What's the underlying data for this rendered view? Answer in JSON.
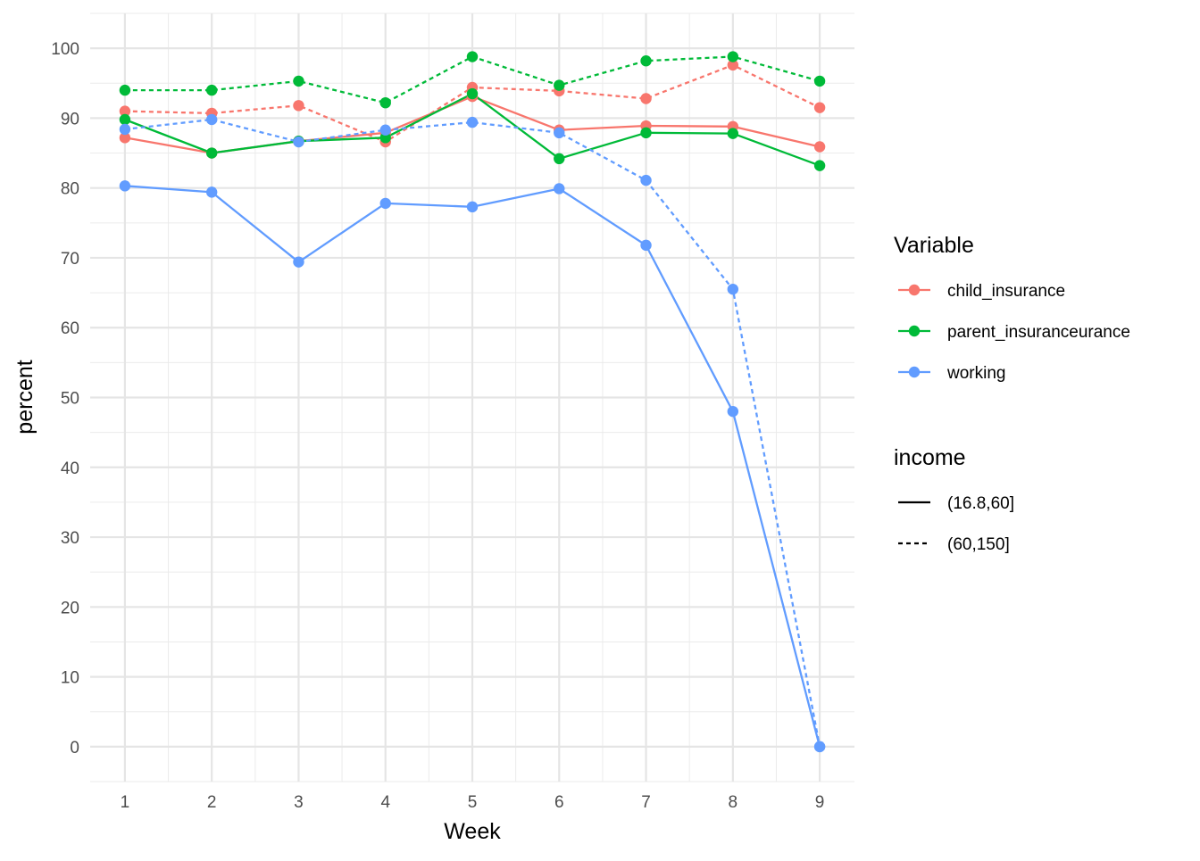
{
  "chart_data": {
    "type": "line",
    "title": "",
    "xlabel": "Week",
    "ylabel": "percent",
    "x": [
      1,
      2,
      3,
      4,
      5,
      6,
      7,
      8,
      9
    ],
    "xlim": [
      0.6,
      9.4
    ],
    "ylim": [
      -5,
      105
    ],
    "yticks": [
      0,
      10,
      20,
      30,
      40,
      50,
      60,
      70,
      80,
      90,
      100
    ],
    "grid": true,
    "legend_position": "right",
    "legend": {
      "color_title": "Variable",
      "color_entries": [
        {
          "label": "child_insurance",
          "color": "#F8766D"
        },
        {
          "label": "parent_insuranceurance",
          "color": "#00BA38"
        },
        {
          "label": "working",
          "color": "#619CFF"
        }
      ],
      "linetype_title": "income",
      "linetype_entries": [
        {
          "label": "(16.8,60]",
          "linetype": "solid"
        },
        {
          "label": "(60,150]",
          "linetype": "dashed"
        }
      ]
    },
    "series": [
      {
        "variable": "child_insurance",
        "income": "(16.8,60]",
        "color": "#F8766D",
        "linetype": "solid",
        "values": [
          87.2,
          85.0,
          86.7,
          87.9,
          93.1,
          88.3,
          88.9,
          88.8,
          85.9
        ]
      },
      {
        "variable": "child_insurance",
        "income": "(60,150]",
        "color": "#F8766D",
        "linetype": "dashed",
        "values": [
          91.0,
          90.7,
          91.8,
          86.6,
          94.4,
          93.9,
          92.8,
          97.6,
          91.5
        ]
      },
      {
        "variable": "parent_insuranceurance",
        "income": "(16.8,60]",
        "color": "#00BA38",
        "linetype": "solid",
        "values": [
          89.8,
          85.0,
          86.7,
          87.2,
          93.5,
          84.2,
          87.9,
          87.8,
          83.2
        ]
      },
      {
        "variable": "parent_insuranceurance",
        "income": "(60,150]",
        "color": "#00BA38",
        "linetype": "dashed",
        "values": [
          94.0,
          94.0,
          95.3,
          92.2,
          98.8,
          94.7,
          98.2,
          98.8,
          95.3
        ]
      },
      {
        "variable": "working",
        "income": "(16.8,60]",
        "color": "#619CFF",
        "linetype": "solid",
        "values": [
          80.3,
          79.4,
          69.4,
          77.8,
          77.3,
          79.9,
          71.8,
          48.0,
          0.0
        ]
      },
      {
        "variable": "working",
        "income": "(60,150]",
        "color": "#619CFF",
        "linetype": "dashed",
        "values": [
          88.4,
          89.8,
          86.6,
          88.3,
          89.4,
          87.9,
          81.1,
          65.5,
          0.0
        ]
      }
    ]
  }
}
